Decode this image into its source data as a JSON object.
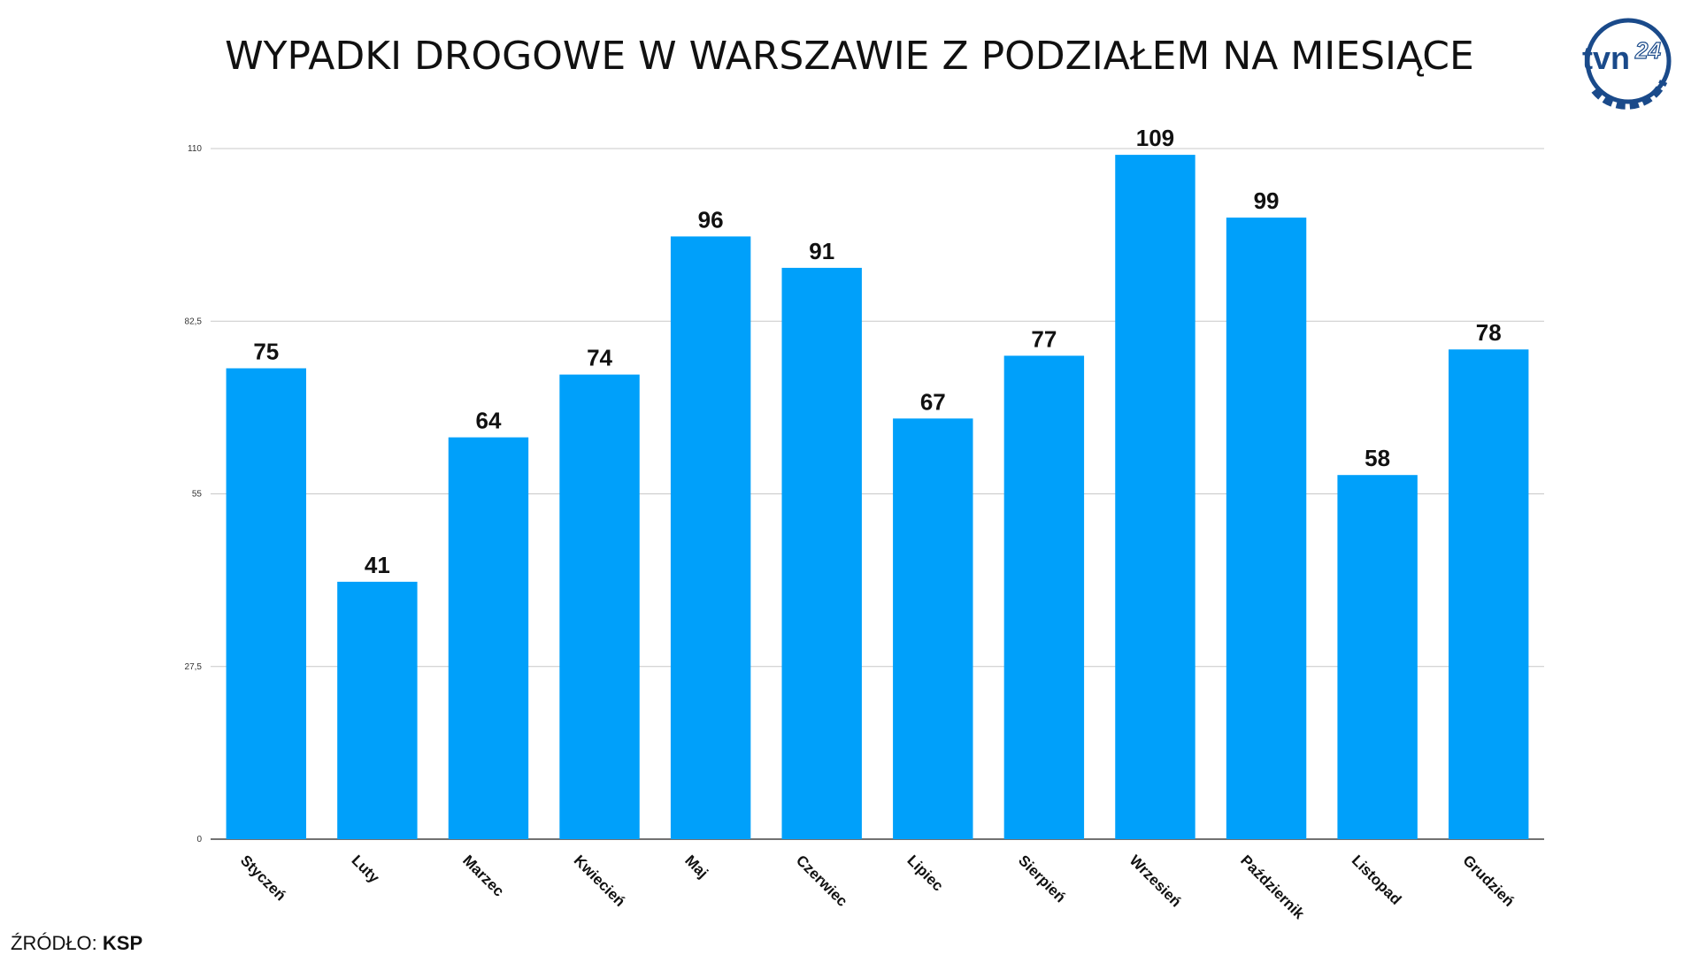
{
  "source": {
    "label": "ŹRÓDŁO:",
    "value": "KSP"
  },
  "logo": {
    "text": "tvn",
    "number": "24",
    "color": "#1a4a8a"
  },
  "chart_data": {
    "type": "bar",
    "title": "WYPADKI DROGOWE W WARSZAWIE Z PODZIAŁEM NA MIESIĄCE",
    "xlabel": "",
    "ylabel": "",
    "categories": [
      "Styczeń",
      "Luty",
      "Marzec",
      "Kwiecień",
      "Maj",
      "Czerwiec",
      "Lipiec",
      "Sierpień",
      "Wrzesień",
      "Październik",
      "Listopad",
      "Grudzień"
    ],
    "values": [
      75,
      41,
      64,
      74,
      96,
      91,
      67,
      77,
      109,
      99,
      58,
      78
    ],
    "ylim": [
      0,
      110
    ],
    "yticks": [
      "0",
      "27,5",
      "55",
      "82,5",
      "110"
    ],
    "ytick_values": [
      0,
      27.5,
      55,
      82.5,
      110
    ],
    "bar_color": "#00a0fa",
    "grid": true,
    "legend": "none"
  }
}
